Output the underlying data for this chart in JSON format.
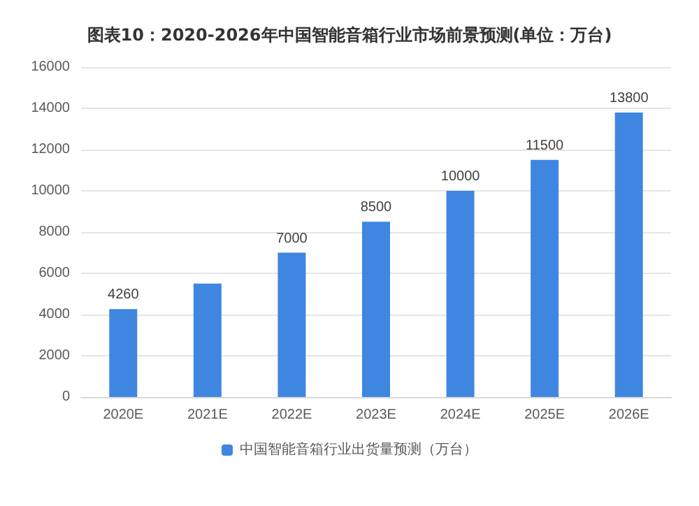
{
  "chart_data": {
    "type": "bar",
    "title": "图表10：2020-2026年中国智能音箱行业市场前景预测(单位：万台)",
    "categories": [
      "2020E",
      "2021E",
      "2022E",
      "2023E",
      "2024E",
      "2025E",
      "2026E"
    ],
    "series": [
      {
        "name": "中国智能音箱行业出货量预测（万台）",
        "color": "#3f86e0",
        "values": [
          4260,
          5500,
          7000,
          8500,
          10000,
          11500,
          13800
        ],
        "value_labels": [
          "4260",
          null,
          "7000",
          "8500",
          "10000",
          "11500",
          "13800"
        ]
      }
    ],
    "ylim": [
      0,
      16000
    ],
    "yticks": [
      0,
      2000,
      4000,
      6000,
      8000,
      10000,
      12000,
      14000,
      16000
    ],
    "grid": "y",
    "legend": "bottom"
  }
}
